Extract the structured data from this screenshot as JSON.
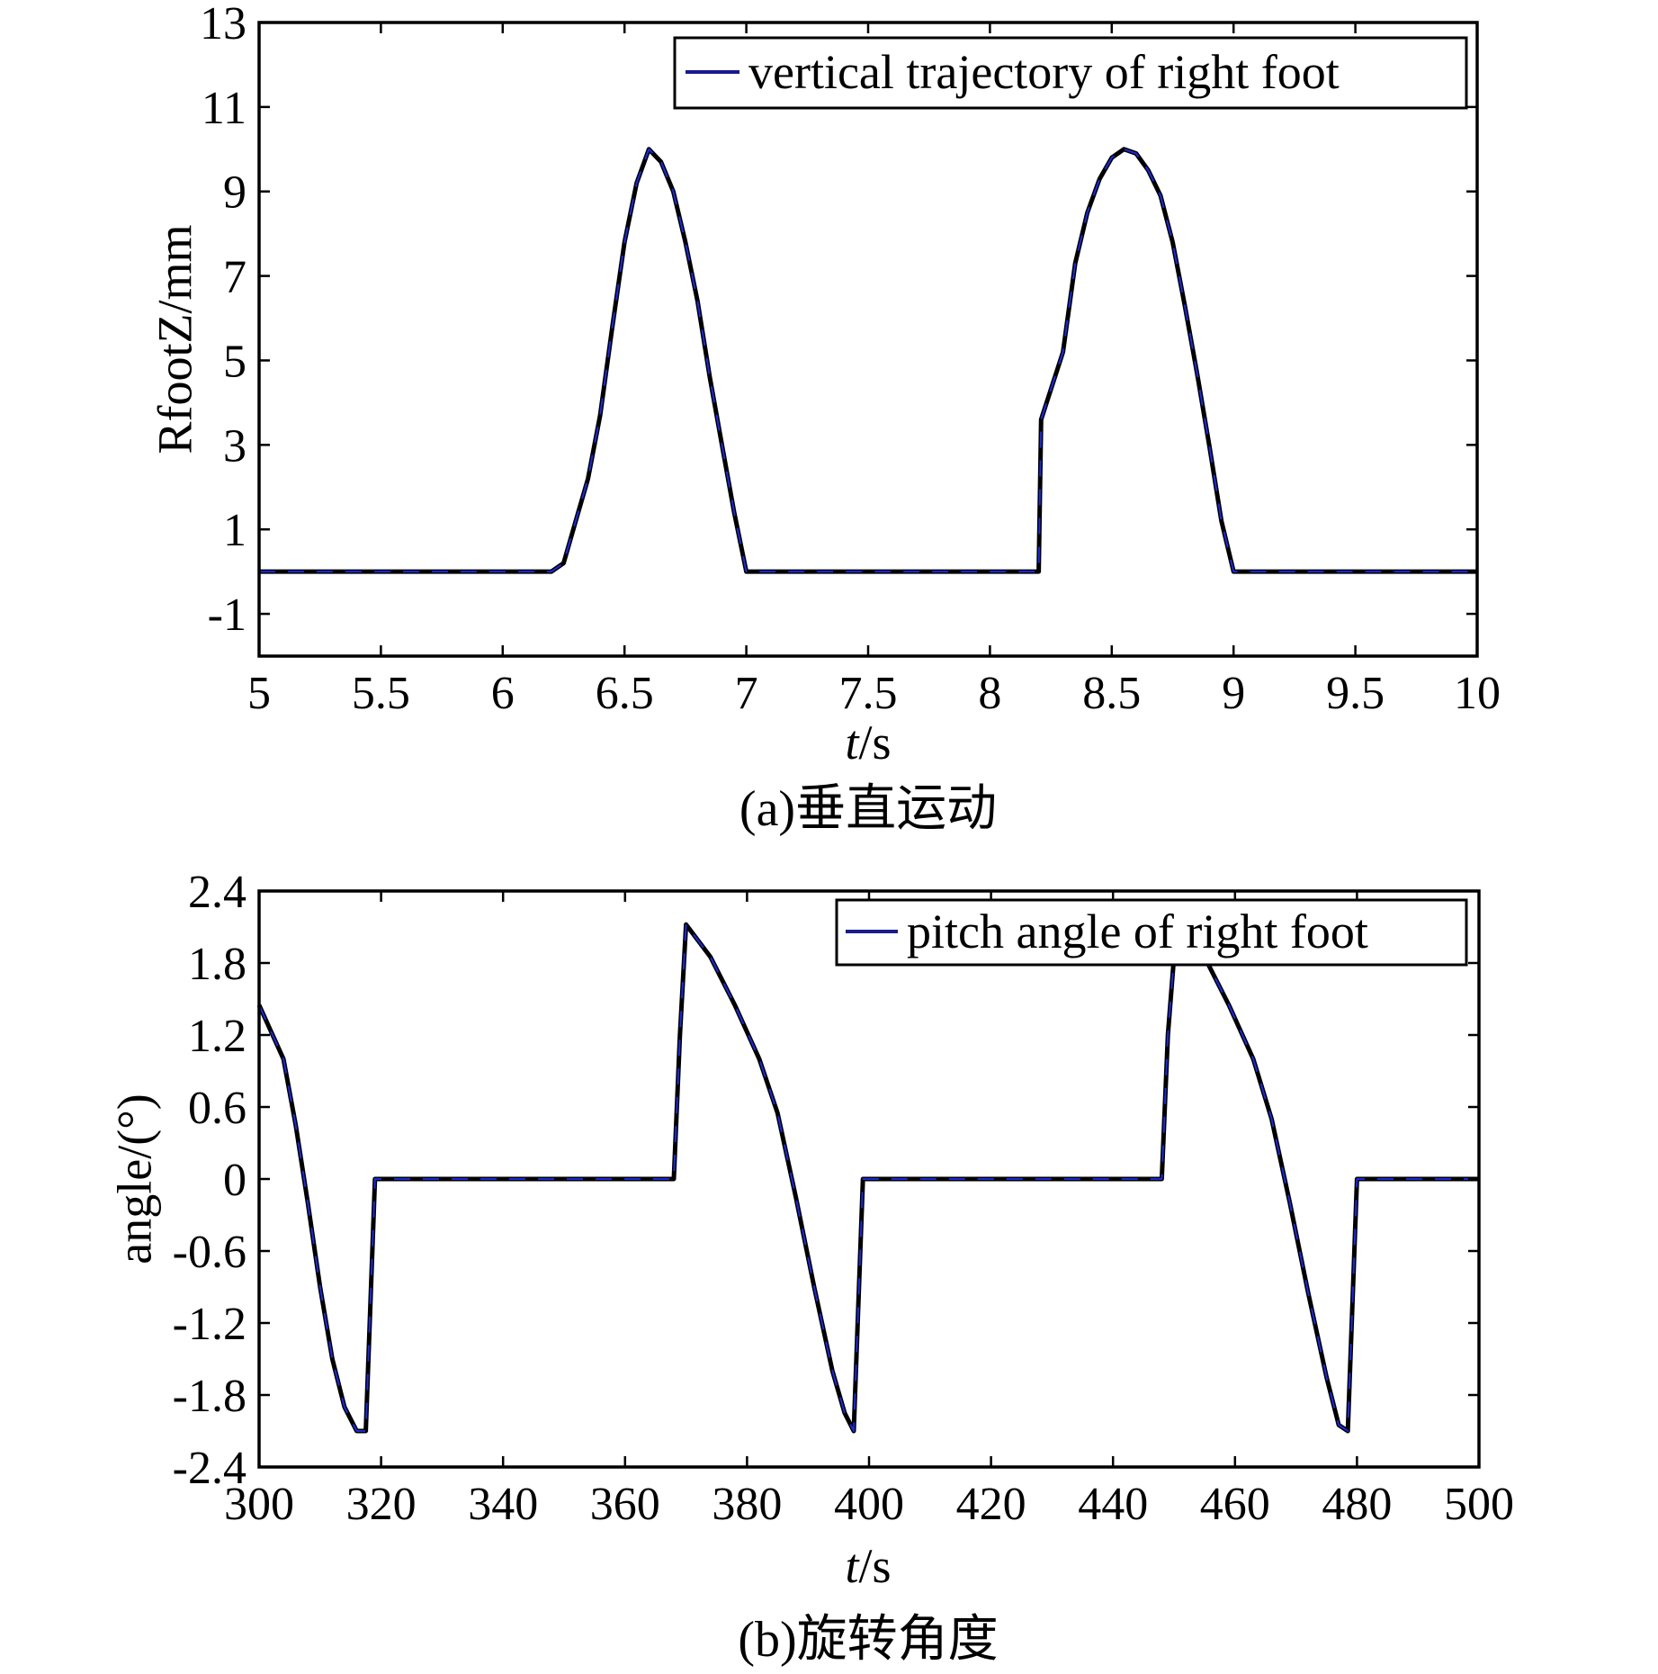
{
  "chart_data": [
    {
      "type": "line",
      "caption": "(a)垂直运动",
      "xlabel": "t/s",
      "xlabel_var": "t",
      "xlabel_unit": "/s",
      "ylabel": "RfootZ/mm",
      "xlim": [
        5,
        10
      ],
      "ylim": [
        -2,
        13
      ],
      "xticks": [
        "5",
        "5.5",
        "6",
        "6.5",
        "7",
        "7.5",
        "8",
        "8.5",
        "9",
        "9.5",
        "10"
      ],
      "yticks": [
        "13",
        "11",
        "9",
        "7",
        "5",
        "3",
        "1",
        "-1"
      ],
      "ytick_values": [
        13,
        11,
        9,
        7,
        5,
        3,
        1,
        -1
      ],
      "legend": "vertical trajectory of right foot",
      "legend_position": "top-right",
      "series": [
        {
          "name": "vertical trajectory of right foot",
          "color": "#1a1a8c",
          "x": [
            5,
            6.2,
            6.25,
            6.3,
            6.35,
            6.4,
            6.45,
            6.5,
            6.55,
            6.6,
            6.65,
            6.7,
            6.75,
            6.8,
            6.85,
            6.9,
            6.95,
            7.0,
            8.2,
            8.21,
            8.3,
            8.35,
            8.4,
            8.45,
            8.5,
            8.55,
            8.6,
            8.65,
            8.7,
            8.75,
            8.8,
            8.85,
            8.9,
            8.95,
            9.0,
            10
          ],
          "y": [
            0,
            0,
            0.2,
            1.2,
            2.2,
            3.7,
            5.8,
            7.8,
            9.2,
            10.0,
            9.7,
            9.0,
            7.8,
            6.4,
            4.6,
            3.0,
            1.4,
            0,
            0,
            3.6,
            5.2,
            7.3,
            8.5,
            9.3,
            9.8,
            10.0,
            9.9,
            9.5,
            8.9,
            7.8,
            6.3,
            4.7,
            3.0,
            1.2,
            0,
            0
          ]
        }
      ]
    },
    {
      "type": "line",
      "caption": "(b)旋转角度",
      "xlabel": "t/s",
      "xlabel_var": "t",
      "xlabel_unit": "/s",
      "ylabel": "angle/(°)",
      "xlim": [
        300,
        500
      ],
      "ylim": [
        -2.4,
        2.4
      ],
      "xticks": [
        "300",
        "320",
        "340",
        "360",
        "380",
        "400",
        "420",
        "440",
        "460",
        "480",
        "500"
      ],
      "yticks": [
        "2.4",
        "1.8",
        "1.2",
        "0.6",
        "0",
        "-0.6",
        "-1.2",
        "-1.8",
        "-2.4"
      ],
      "ytick_values": [
        2.4,
        1.8,
        1.2,
        0.6,
        0,
        -0.6,
        -1.2,
        -1.8,
        -2.4
      ],
      "legend": "pitch angle of right foot",
      "legend_position": "top-right",
      "series": [
        {
          "name": "pitch angle of right foot",
          "color": "#1a1a8c",
          "x": [
            300,
            304,
            306,
            308,
            310,
            312,
            314,
            316,
            317.5,
            319,
            368,
            369,
            370,
            374,
            378,
            382,
            385,
            388,
            391,
            394,
            396,
            397.5,
            399,
            448,
            449,
            450,
            452,
            455,
            459,
            463,
            466,
            469,
            472,
            475,
            477,
            478.5,
            480,
            500
          ],
          "y": [
            1.45,
            1.0,
            0.45,
            -0.2,
            -0.9,
            -1.5,
            -1.9,
            -2.1,
            -2.1,
            0,
            0,
            1.2,
            2.12,
            1.85,
            1.45,
            1.0,
            0.55,
            -0.15,
            -0.9,
            -1.6,
            -1.95,
            -2.1,
            0,
            0,
            1.2,
            1.85,
            1.85,
            1.85,
            1.45,
            1.0,
            0.5,
            -0.2,
            -0.95,
            -1.65,
            -2.05,
            -2.1,
            0,
            0
          ]
        }
      ]
    }
  ]
}
